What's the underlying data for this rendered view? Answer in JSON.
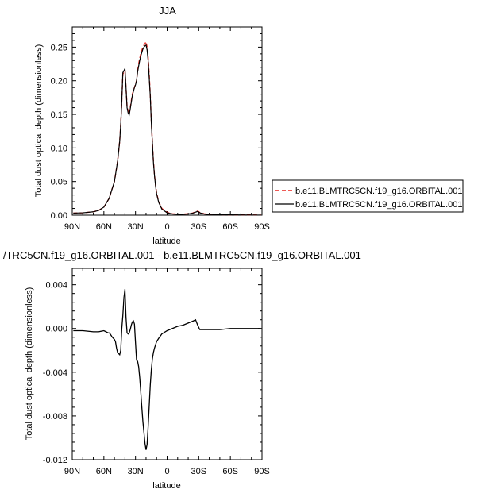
{
  "chart_data": [
    {
      "type": "line",
      "title": "JJA",
      "xlabel": "latitude",
      "ylabel": "Total dust optical depth (dimensionless)",
      "xlim": [
        90,
        -90
      ],
      "ylim": [
        0,
        0.28
      ],
      "xticks": [
        90,
        60,
        30,
        0,
        -30,
        -60,
        -90
      ],
      "xtick_labels": [
        "90N",
        "60N",
        "30N",
        "0",
        "30S",
        "60S",
        "90S"
      ],
      "yticks": [
        0,
        0.05,
        0.1,
        0.15,
        0.2,
        0.25
      ],
      "ytick_labels": [
        "0.00",
        "0.05",
        "0.10",
        "0.15",
        "0.20",
        "0.25"
      ],
      "grid": false,
      "legend_position": "right",
      "series": [
        {
          "name": "b.e11.BLMTRC5CN.f19_g16.ORBITAL.001",
          "color": "#e8231d",
          "style": "dashed",
          "x": [
            89,
            80,
            70,
            65,
            60,
            55,
            50,
            47,
            45,
            44,
            43,
            42,
            41,
            40,
            39,
            38,
            37,
            36,
            35,
            34,
            33,
            32,
            31,
            30,
            29,
            28,
            27,
            26,
            25,
            24,
            23,
            22,
            21,
            20,
            19,
            18,
            17,
            16,
            15,
            14,
            13,
            12,
            11,
            10,
            8,
            5,
            0,
            -5,
            -10,
            -15,
            -20,
            -24,
            -27,
            -29,
            -31,
            -35,
            -40,
            -60,
            -80,
            -89
          ],
          "y": [
            0.003,
            0.0035,
            0.005,
            0.007,
            0.012,
            0.025,
            0.05,
            0.08,
            0.11,
            0.135,
            0.17,
            0.21,
            0.213,
            0.215,
            0.19,
            0.162,
            0.155,
            0.15,
            0.16,
            0.17,
            0.18,
            0.185,
            0.19,
            0.195,
            0.2,
            0.215,
            0.225,
            0.233,
            0.24,
            0.245,
            0.25,
            0.253,
            0.255,
            0.258,
            0.25,
            0.235,
            0.21,
            0.18,
            0.14,
            0.11,
            0.08,
            0.06,
            0.045,
            0.033,
            0.02,
            0.01,
            0.004,
            0.002,
            0.0015,
            0.0015,
            0.002,
            0.003,
            0.005,
            0.006,
            0.004,
            0.002,
            0.001,
            0.0005,
            0.0003,
            0.0002
          ]
        },
        {
          "name": "b.e11.BLMTRC5CN.f19_g16.ORBITAL.001",
          "color": "#000000",
          "style": "solid",
          "x": [
            89,
            80,
            70,
            65,
            60,
            55,
            50,
            47,
            45,
            44,
            43,
            42,
            41,
            40,
            39,
            38,
            37,
            36,
            35,
            34,
            33,
            32,
            31,
            30,
            29,
            28,
            27,
            26,
            25,
            24,
            23,
            22,
            21,
            20,
            19,
            18,
            17,
            16,
            15,
            14,
            13,
            12,
            11,
            10,
            8,
            5,
            0,
            -5,
            -10,
            -15,
            -20,
            -24,
            -27,
            -29,
            -31,
            -35,
            -40,
            -60,
            -80,
            -89
          ],
          "y": [
            0.003,
            0.0035,
            0.005,
            0.007,
            0.012,
            0.025,
            0.05,
            0.08,
            0.11,
            0.135,
            0.17,
            0.212,
            0.215,
            0.218,
            0.19,
            0.16,
            0.152,
            0.149,
            0.158,
            0.168,
            0.178,
            0.184,
            0.19,
            0.194,
            0.2,
            0.213,
            0.222,
            0.23,
            0.237,
            0.242,
            0.247,
            0.25,
            0.252,
            0.253,
            0.246,
            0.23,
            0.205,
            0.178,
            0.138,
            0.108,
            0.079,
            0.059,
            0.044,
            0.032,
            0.019,
            0.009,
            0.0035,
            0.0018,
            0.0013,
            0.0013,
            0.0018,
            0.0028,
            0.0045,
            0.0055,
            0.0035,
            0.0018,
            0.0009,
            0.0004,
            0.0002,
            0.0001
          ]
        }
      ]
    },
    {
      "type": "line",
      "title": "/TRC5CN.f19_g16.ORBITAL.001 - b.e11.BLMTRC5CN.f19_g16.ORBITAL.001",
      "xlabel": "latitude",
      "ylabel": "Total dust optical depth (dimensionless)",
      "xlim": [
        90,
        -90
      ],
      "ylim": [
        -0.012,
        0.0055
      ],
      "xticks": [
        90,
        60,
        30,
        0,
        -30,
        -60,
        -90
      ],
      "xtick_labels": [
        "90N",
        "60N",
        "30N",
        "0",
        "30S",
        "60S",
        "90S"
      ],
      "yticks": [
        -0.012,
        -0.008,
        -0.004,
        0,
        0.004
      ],
      "ytick_labels": [
        "-0.012",
        "-0.008",
        "-0.004",
        "0.000",
        "0.004"
      ],
      "grid": false,
      "series": [
        {
          "color": "#000000",
          "style": "solid",
          "x": [
            89,
            80,
            70,
            65,
            60,
            58,
            56,
            55,
            54,
            52,
            50,
            49,
            48,
            47,
            46,
            45,
            44,
            43,
            42,
            41,
            40,
            39,
            38,
            37,
            36,
            35,
            34,
            33,
            32,
            31,
            30,
            29,
            28,
            27,
            26,
            25,
            24,
            23,
            22,
            21,
            20,
            19,
            18,
            17,
            16,
            15,
            14,
            13,
            12,
            10,
            8,
            5,
            0,
            -5,
            -10,
            -15,
            -20,
            -25,
            -27,
            -29,
            -31,
            -35,
            -40,
            -50,
            -60,
            -70,
            -80,
            -89
          ],
          "y": [
            -0.0002,
            -0.0002,
            -0.0003,
            -0.0003,
            -0.0002,
            -0.0003,
            -0.0004,
            -0.0004,
            -0.0005,
            -0.0008,
            -0.001,
            -0.0012,
            -0.0018,
            -0.0022,
            -0.0023,
            -0.0024,
            -0.002,
            0.0,
            0.0012,
            0.0028,
            0.0036,
            0.001,
            -0.0004,
            -0.0005,
            -0.0004,
            -0.0001,
            0.0003,
            0.0006,
            0.0007,
            0.0004,
            -0.0013,
            -0.0029,
            -0.003,
            -0.0035,
            -0.0045,
            -0.0058,
            -0.0072,
            -0.0085,
            -0.0095,
            -0.0105,
            -0.0111,
            -0.0106,
            -0.009,
            -0.0071,
            -0.0052,
            -0.0038,
            -0.0028,
            -0.0022,
            -0.0018,
            -0.0012,
            -0.0009,
            -0.0005,
            -0.0002,
            0.0,
            0.0002,
            0.0003,
            0.0005,
            0.0007,
            0.0008,
            0.0003,
            -0.0001,
            -0.0001,
            -0.0001,
            -0.0001,
            0.0,
            0.0,
            0.0,
            0.0
          ]
        }
      ]
    }
  ]
}
